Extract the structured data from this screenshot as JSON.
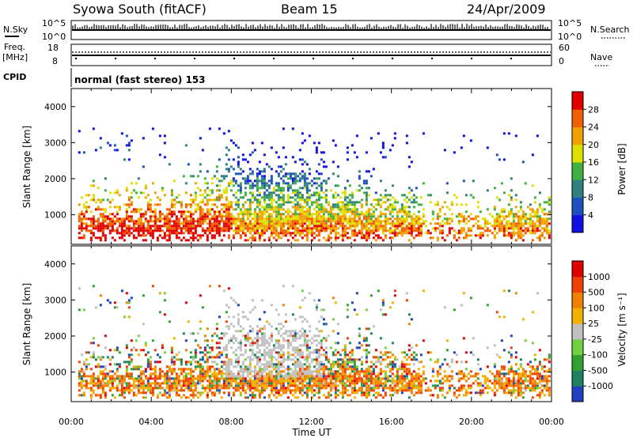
{
  "header": {
    "station": "Syowa South (fitACF)",
    "beam": "Beam 15",
    "date": "24/Apr/2009"
  },
  "top_panels": {
    "nsky_label": "N.Sky",
    "nsky_ticks": [
      "10^5",
      "10^0"
    ],
    "nsearch_label": "N.Search",
    "nsearch_ticks": [
      "10^5",
      "10^0"
    ],
    "freq_label_1": "Freq.",
    "freq_label_2": "[MHz]",
    "freq_ticks": [
      "18",
      "8"
    ],
    "nave_label": "Nave",
    "nave_ticks": [
      "60",
      "0"
    ],
    "cpid_label": "CPID",
    "cpid_text": "normal (fast stereo) 153"
  },
  "chart_data": [
    {
      "type": "heatmap",
      "title": "",
      "ylabel": "Slant Range [km]",
      "xlabel": "",
      "ylim": [
        180,
        4500
      ],
      "yticks": [
        "1000",
        "2000",
        "3000",
        "4000"
      ],
      "colorbar": {
        "label": "Power [dB]",
        "range": [
          0,
          32
        ],
        "tick_labels": [
          "4",
          "8",
          "12",
          "16",
          "20",
          "24",
          "28"
        ],
        "colors": [
          "#1010e0",
          "#2050c0",
          "#308080",
          "#40b040",
          "#e0e000",
          "#f0a000",
          "#f06000",
          "#e00000"
        ]
      }
    },
    {
      "type": "heatmap",
      "title": "",
      "ylabel": "Slant Range [km]",
      "xlabel": "Time UT",
      "ylim": [
        180,
        4500
      ],
      "yticks": [
        "1000",
        "2000",
        "3000",
        "4000"
      ],
      "xticks": [
        "00:00",
        "04:00",
        "08:00",
        "12:00",
        "16:00",
        "20:00",
        "00:00"
      ],
      "colorbar": {
        "label": "Velocity [m s⁻¹]",
        "tick_labels": [
          "1000",
          "500",
          "100",
          "25",
          "-25",
          "-100",
          "-500",
          "-1000"
        ],
        "colors": [
          "#2040c0",
          "#208060",
          "#30a030",
          "#70d040",
          "#c0c0c0",
          "#f0b000",
          "#f08000",
          "#f04000",
          "#e00000"
        ]
      }
    }
  ]
}
